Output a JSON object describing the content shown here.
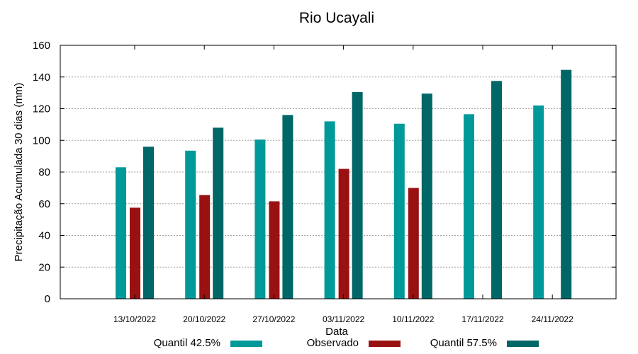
{
  "chart_data": {
    "type": "bar",
    "title": "Rio Ucayali",
    "xlabel": "Data",
    "ylabel": "Precipitação Acumulada 30 dias (mm)",
    "ylim": [
      0,
      160
    ],
    "yticks": [
      0,
      20,
      40,
      60,
      80,
      100,
      120,
      140,
      160
    ],
    "grid": true,
    "legend_position": "bottom",
    "categories": [
      "13/10/2022",
      "20/10/2022",
      "27/10/2022",
      "03/11/2022",
      "10/11/2022",
      "17/11/2022",
      "24/11/2022"
    ],
    "series": [
      {
        "name": "Quantil 42.5%",
        "color": "#009999",
        "values": [
          83,
          93.5,
          100.5,
          112,
          110.5,
          116.5,
          122
        ]
      },
      {
        "name": "Observado",
        "color": "#991111",
        "values": [
          57.5,
          65.5,
          61.5,
          82,
          70,
          null,
          null
        ]
      },
      {
        "name": "Quantil 57.5%",
        "color": "#006666",
        "values": [
          96,
          108,
          116,
          130.5,
          129.5,
          137.5,
          144.5
        ]
      }
    ]
  }
}
